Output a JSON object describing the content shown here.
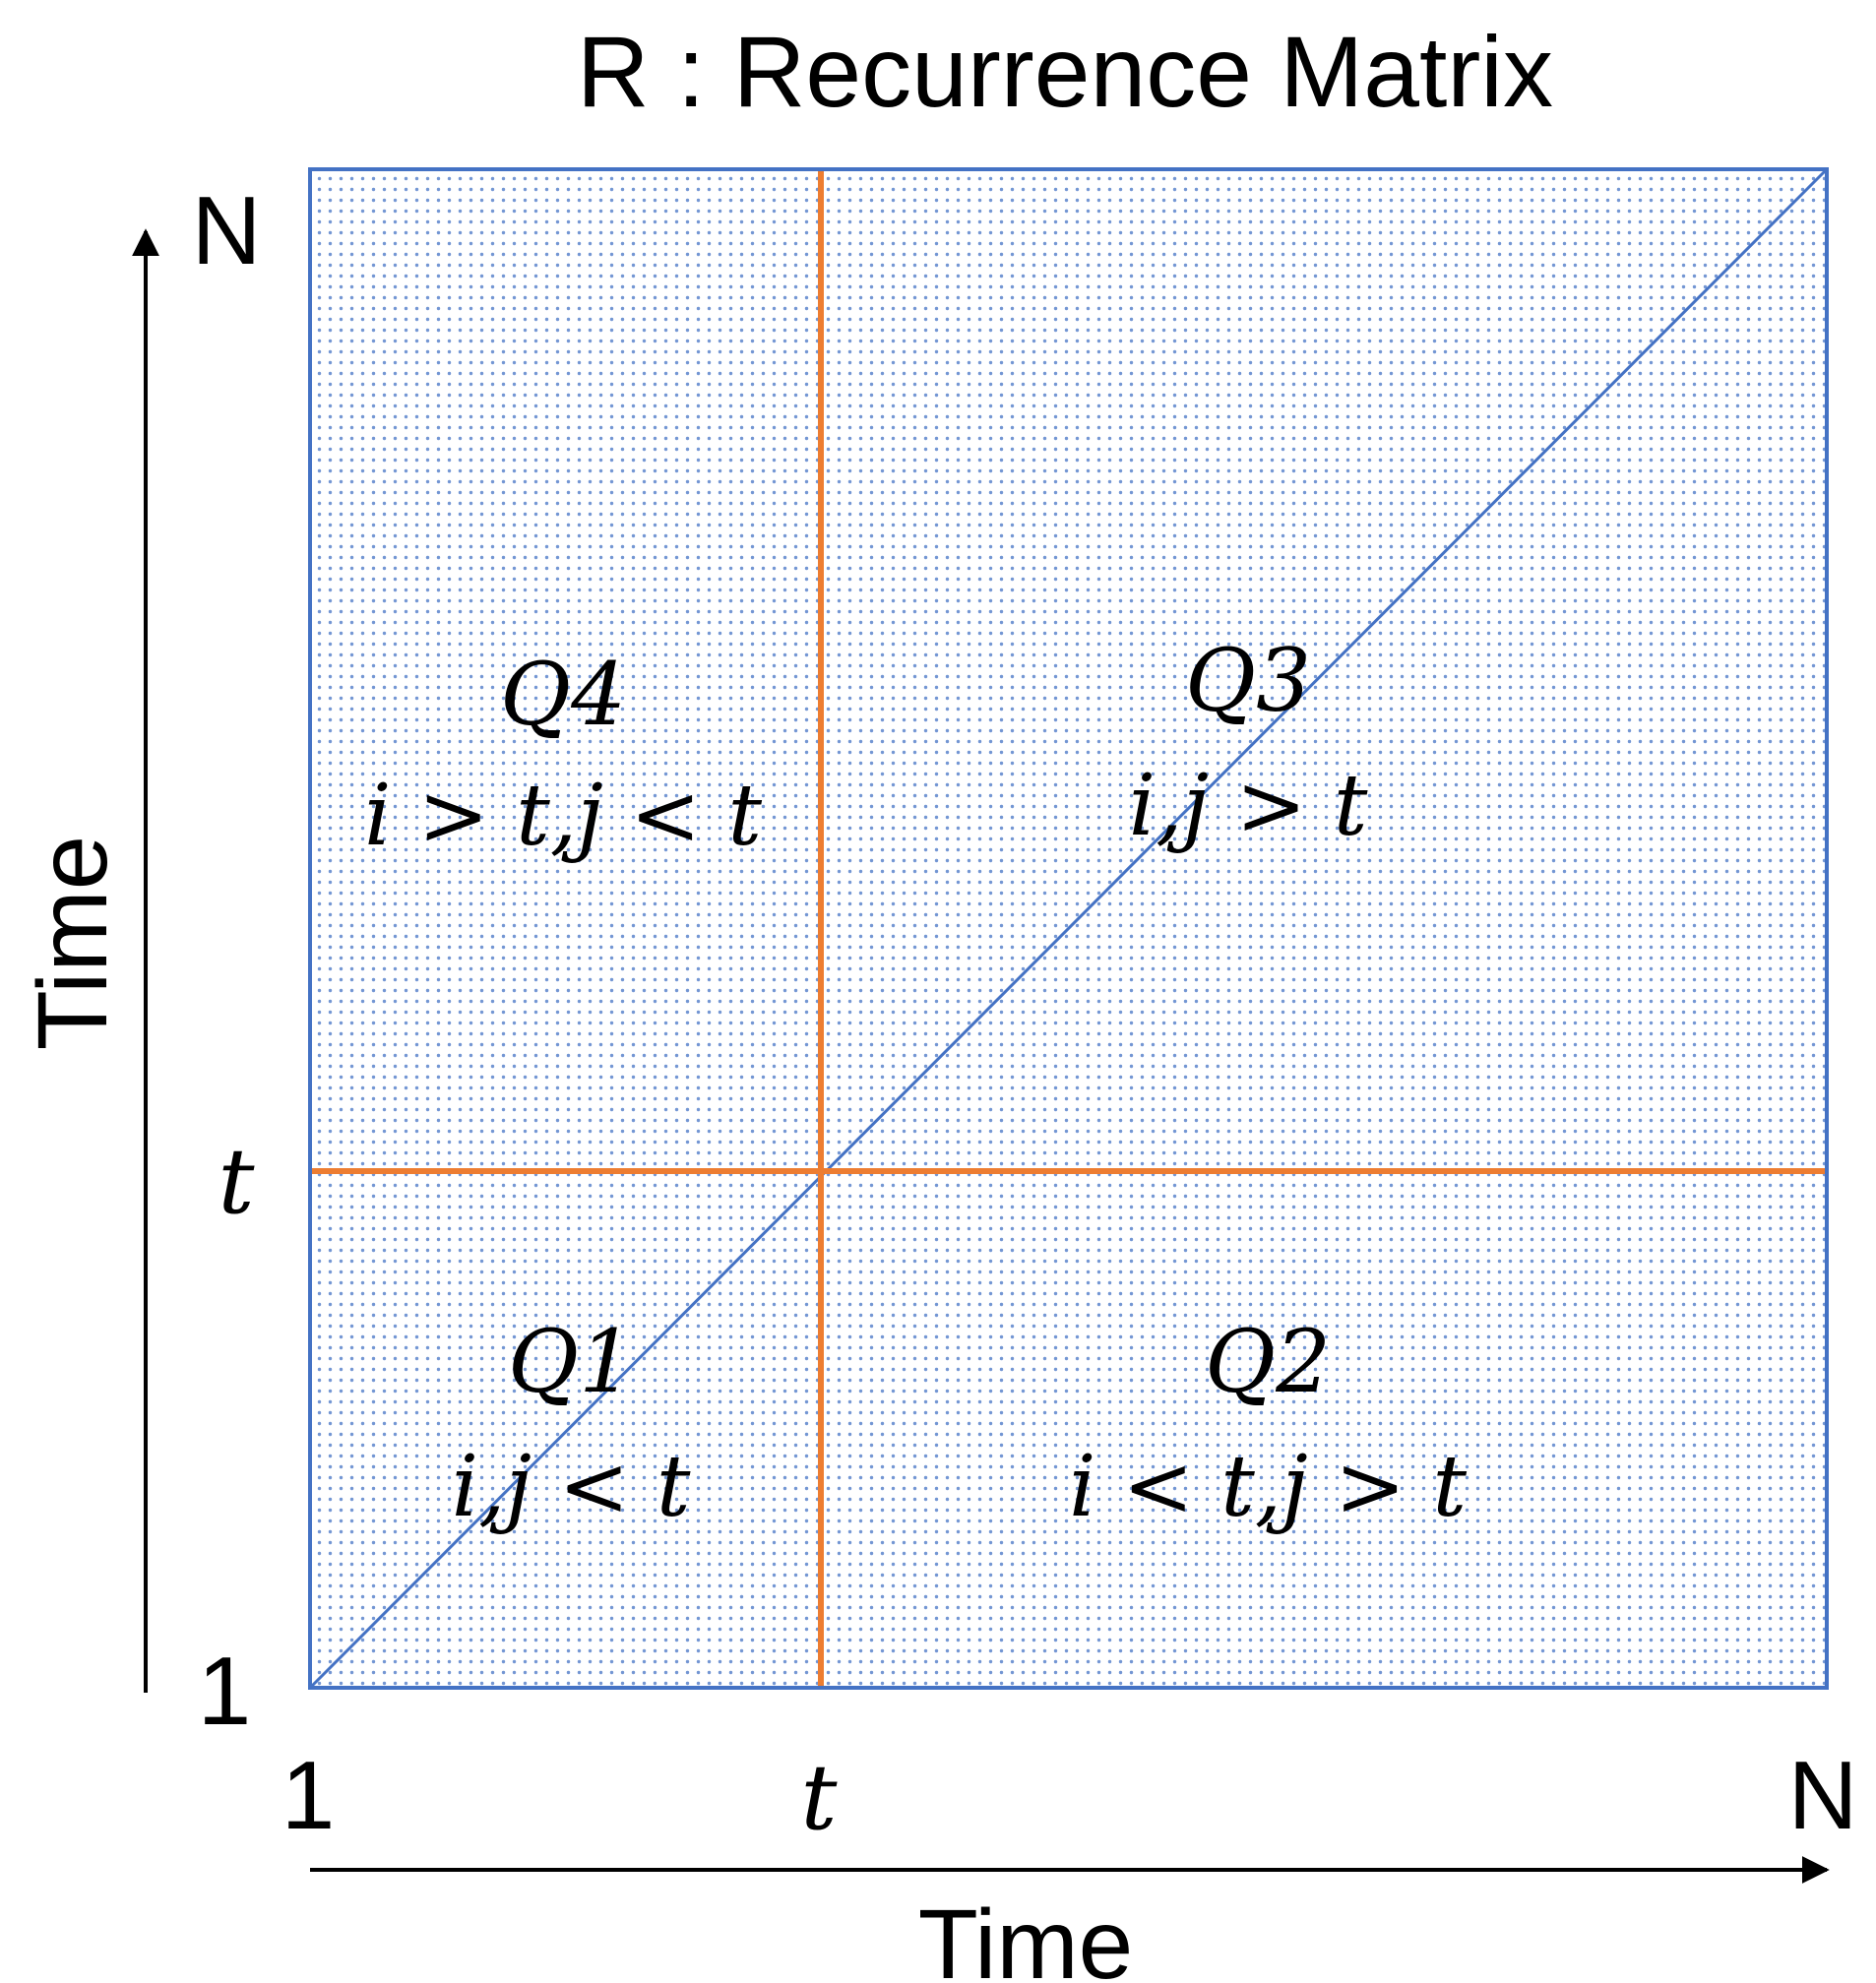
{
  "title": "R : Recurrence Matrix",
  "axes": {
    "x_title": "Time",
    "y_title": "Time",
    "x_ticks": {
      "start": "1",
      "mid": "t",
      "end": "N"
    },
    "y_ticks": {
      "start": "1",
      "mid": "t",
      "end": "N"
    }
  },
  "quadrants": {
    "q1": {
      "label": "Q1",
      "condition": "i,j < t"
    },
    "q2": {
      "label": "Q2",
      "condition": "i < t,j > t"
    },
    "q3": {
      "label": "Q3",
      "condition": "i,j > t"
    },
    "q4": {
      "label": "Q4",
      "condition": "i > t,j < t"
    }
  },
  "colors": {
    "matrix_border": "#4472C4",
    "matrix_dots": "#4472C4",
    "divider": "#ED7D31",
    "diagonal": "#4472C4",
    "axis": "#000000"
  }
}
